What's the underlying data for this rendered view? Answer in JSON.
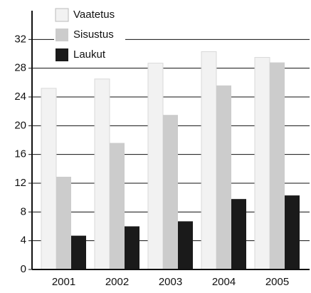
{
  "chart_data": {
    "type": "bar",
    "categories": [
      "2001",
      "2002",
      "2003",
      "2004",
      "2005"
    ],
    "series": [
      {
        "name": "Vaatetus",
        "color": "#f2f2f2",
        "values": [
          25.2,
          26.5,
          28.7,
          30.3,
          29.5
        ]
      },
      {
        "name": "Sisustus",
        "color": "#cccccc",
        "values": [
          12.9,
          17.6,
          21.5,
          25.6,
          28.8
        ]
      },
      {
        "name": "Laukut",
        "color": "#1a1a1a",
        "values": [
          4.7,
          6.0,
          6.7,
          9.8,
          10.3
        ]
      }
    ],
    "ylim": [
      0,
      36
    ],
    "yticks": [
      0,
      4,
      8,
      12,
      16,
      20,
      24,
      28,
      32
    ],
    "grid": true,
    "legend": "top-left"
  }
}
